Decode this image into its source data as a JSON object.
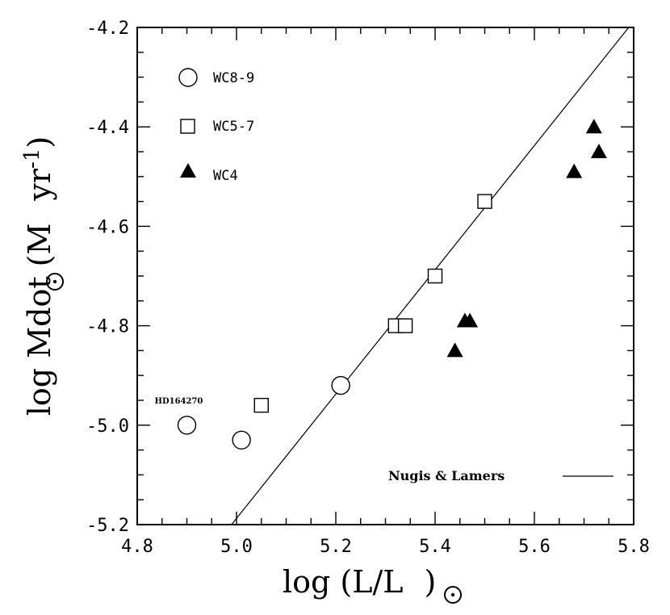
{
  "chart_data": {
    "type": "scatter",
    "xlabel": {
      "prefix": "log (L/L",
      "suffix": ")"
    },
    "ylabel": {
      "prefix": "log Mdot (M",
      "mid": "yr",
      "sup": "-1",
      "suffix": ")"
    },
    "xlim": [
      4.8,
      5.8
    ],
    "ylim": [
      -5.2,
      -4.2
    ],
    "xticks": [
      "4.8",
      "5.0",
      "5.2",
      "5.4",
      "5.6",
      "5.8"
    ],
    "yticks": [
      "-5.2",
      "-5.0",
      "-4.8",
      "-4.6",
      "-4.4",
      "-4.2"
    ],
    "grid": false,
    "legend_position": "top-left",
    "series": [
      {
        "name": "WC8-9",
        "marker": "circle-open",
        "x": [
          4.9,
          5.01,
          5.21
        ],
        "y": [
          -5.0,
          -5.03,
          -4.92
        ]
      },
      {
        "name": "WC5-7",
        "marker": "square-open",
        "x": [
          5.05,
          5.32,
          5.34,
          5.4,
          5.5
        ],
        "y": [
          -4.96,
          -4.8,
          -4.8,
          -4.7,
          -4.55
        ]
      },
      {
        "name": "WC4",
        "marker": "triangle-filled",
        "x": [
          5.44,
          5.46,
          5.47,
          5.68,
          5.72,
          5.73
        ],
        "y": [
          -4.85,
          -4.79,
          -4.79,
          -4.49,
          -4.4,
          -4.45
        ]
      }
    ],
    "relation": {
      "name": "Nugis & Lamers",
      "points": [
        [
          4.99,
          -5.2
        ],
        [
          5.79,
          -4.2
        ]
      ]
    },
    "annotations": [
      {
        "text": "HD164270",
        "x": 4.9,
        "y": -5.0
      }
    ]
  }
}
